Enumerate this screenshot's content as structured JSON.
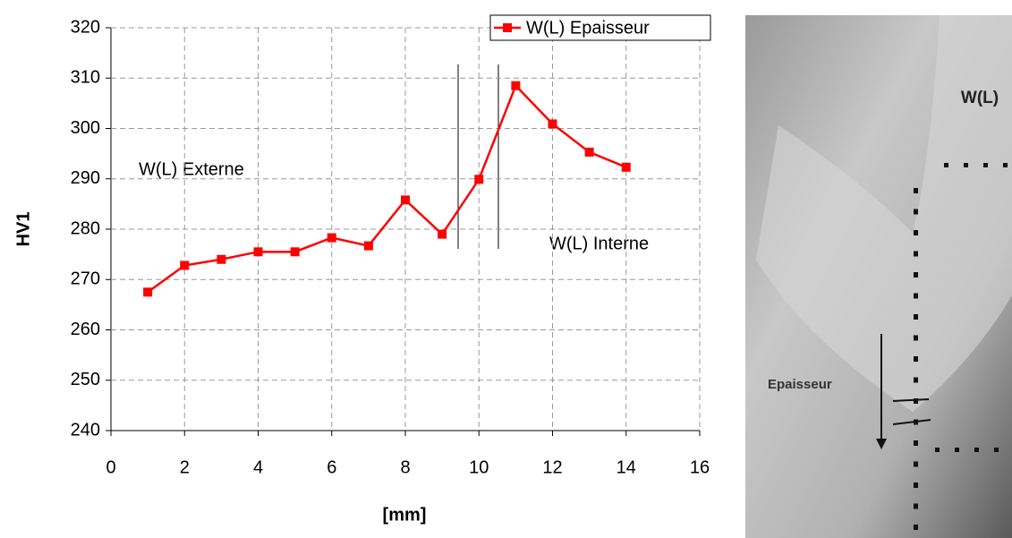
{
  "chart_data": {
    "type": "line",
    "x_label": "[mm]",
    "y_label": "HV1",
    "x": [
      1,
      2,
      3,
      4,
      5,
      6,
      7,
      8,
      9,
      10,
      11,
      12,
      13,
      14
    ],
    "series": [
      {
        "name": "W(L) Epaisseur",
        "color": "#ff0000",
        "values": [
          267.5,
          272.8,
          274,
          275.5,
          275.5,
          278.3,
          276.7,
          285.8,
          279,
          289.9,
          308.5,
          300.9,
          295.3,
          292.3
        ]
      }
    ],
    "xlim": [
      0,
      16
    ],
    "xticks": [
      0,
      2,
      4,
      6,
      8,
      10,
      12,
      14,
      16
    ],
    "ylim": [
      240,
      320
    ],
    "yticks": [
      240,
      250,
      260,
      270,
      280,
      290,
      300,
      310,
      320
    ],
    "grid": true,
    "legend": "upper right",
    "annotations": [
      "W(L) Externe",
      "W(L) Interne"
    ]
  },
  "micrograph": {
    "title": "W(L)",
    "arrow_label": "Epaisseur"
  }
}
